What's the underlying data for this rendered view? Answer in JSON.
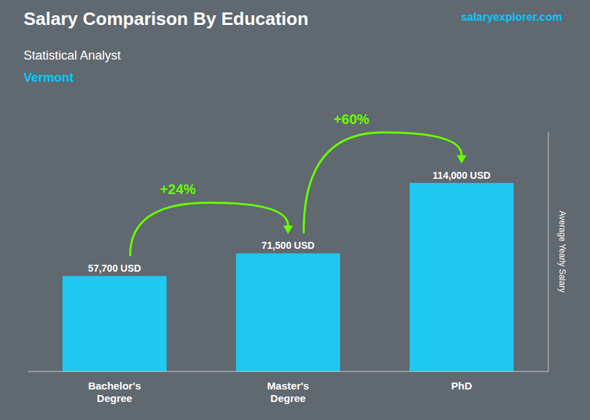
{
  "chart_data": {
    "type": "bar",
    "title": "Salary Comparison By Education",
    "subtitle": "Statistical Analyst",
    "ylabel": "Average Yearly Salary",
    "categories": [
      "Bachelor's\nDegree",
      "Master's\nDegree",
      "PhD"
    ],
    "values": [
      57700,
      71500,
      114000
    ],
    "value_labels": [
      "57,700 USD",
      "71,500 USD",
      "114,000 USD"
    ],
    "data_labels": true,
    "color": "#1EC8EE",
    "ylim": [
      0,
      145000
    ],
    "tick_labels": "x",
    "grid": false,
    "annotations": [
      {
        "text": "Vermont",
        "color": "#00CCFF"
      },
      {
        "text": "salaryexplorer.com",
        "color": "#00CCFF"
      },
      {
        "text": "+24%",
        "color": "#66FF00",
        "from": "Bachelor's\nDegree",
        "to": "Master's\nDegree"
      },
      {
        "text": "+60%",
        "color": "#66FF00",
        "from": "Master's\nDegree",
        "to": "PhD"
      }
    ]
  }
}
